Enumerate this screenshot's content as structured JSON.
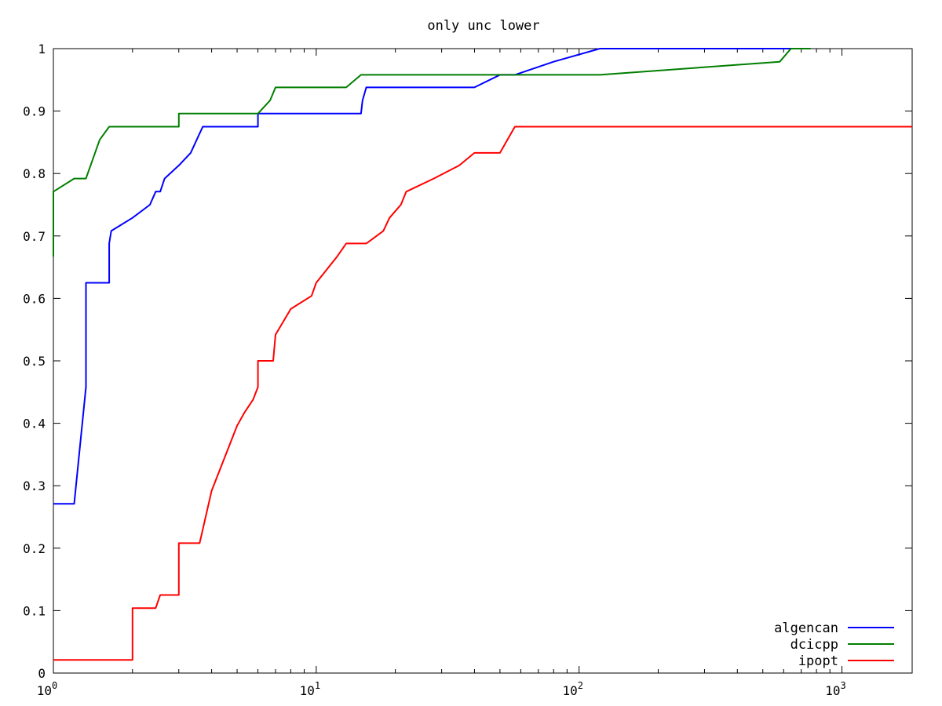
{
  "chart_data": {
    "type": "line",
    "title": "only unc lower",
    "xscale": "log",
    "xlim": [
      1,
      1850
    ],
    "ylim": [
      0,
      1
    ],
    "y_ticks": [
      0,
      0.1,
      0.2,
      0.3,
      0.4,
      0.5,
      0.6,
      0.7,
      0.8,
      0.9,
      1
    ],
    "y_tick_labels": [
      "0",
      "0.1",
      "0.2",
      "0.3",
      "0.4",
      "0.5",
      "0.6",
      "0.7",
      "0.8",
      "0.9",
      "1"
    ],
    "x_ticks": [
      1,
      10,
      100,
      1000
    ],
    "x_tick_labels": [
      {
        "base": "10",
        "exp": "0"
      },
      {
        "base": "10",
        "exp": "1"
      },
      {
        "base": "10",
        "exp": "2"
      },
      {
        "base": "10",
        "exp": "3"
      }
    ],
    "grid": false,
    "legend": "bottom-right",
    "series": [
      {
        "name": "algencan",
        "color": "#0000ff",
        "x": [
          1,
          1.2,
          1.2,
          1.33,
          1.33,
          1.63,
          1.63,
          1.66,
          2.0,
          2.33,
          2.45,
          2.55,
          2.65,
          3.0,
          3.33,
          3.7,
          6.0,
          6.0,
          14.8,
          15.0,
          15.5,
          40.0,
          50.0,
          57.0,
          80.0,
          120.0,
          760.0
        ],
        "y": [
          0.271,
          0.271,
          0.271,
          0.458,
          0.625,
          0.625,
          0.688,
          0.708,
          0.729,
          0.75,
          0.771,
          0.771,
          0.792,
          0.813,
          0.833,
          0.875,
          0.875,
          0.896,
          0.896,
          0.917,
          0.938,
          0.938,
          0.958,
          0.958,
          0.979,
          1.0,
          1.0
        ]
      },
      {
        "name": "dcicpp",
        "color": "#007f00",
        "x": [
          1.0,
          1.0,
          1.2,
          1.33,
          1.5,
          1.63,
          3.0,
          3.0,
          6.0,
          6.67,
          7.0,
          13.0,
          14.8,
          120.0,
          580.0,
          640.0,
          760.0
        ],
        "y": [
          0.667,
          0.771,
          0.792,
          0.792,
          0.854,
          0.875,
          0.875,
          0.896,
          0.896,
          0.917,
          0.938,
          0.938,
          0.958,
          0.958,
          0.979,
          1.0,
          1.0
        ],
        "x_end": 760
      },
      {
        "name": "ipopt",
        "color": "#ff0000",
        "x": [
          1,
          2.0,
          2.0,
          2.45,
          2.55,
          3.0,
          3.0,
          3.6,
          4.0,
          5.0,
          5.33,
          5.75,
          6.0,
          6.0,
          6.86,
          7.0,
          8.0,
          9.6,
          10.0,
          12.0,
          13.0,
          15.5,
          18.0,
          19.0,
          21.0,
          22.0,
          28.0,
          35.0,
          40.0,
          50.0,
          57.0,
          1850.0
        ],
        "y": [
          0.021,
          0.021,
          0.104,
          0.104,
          0.125,
          0.125,
          0.208,
          0.208,
          0.292,
          0.396,
          0.417,
          0.438,
          0.458,
          0.5,
          0.5,
          0.542,
          0.583,
          0.604,
          0.625,
          0.667,
          0.688,
          0.688,
          0.708,
          0.729,
          0.75,
          0.771,
          0.792,
          0.813,
          0.833,
          0.833,
          0.875,
          0.875
        ]
      }
    ]
  }
}
